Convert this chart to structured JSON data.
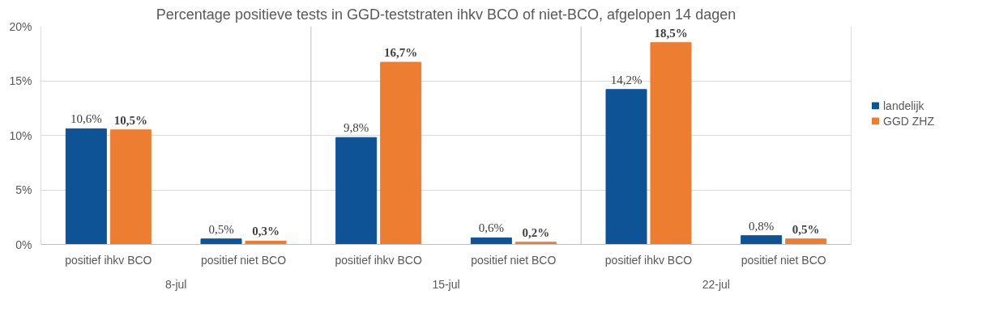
{
  "chart_data": {
    "type": "bar",
    "title": "Percentage positieve tests in GGD-teststraten ihkv BCO of niet-BCO, afgelopen 14 dagen",
    "categories": [
      "positief ihkv BCO",
      "positief niet BCO",
      "positief ihkv BCO",
      "positief niet BCO",
      "positief ihkv BCO",
      "positief niet BCO"
    ],
    "annotations": [
      "8-jul",
      "15-jul",
      "22-jul"
    ],
    "series": [
      {
        "name": "landelijk",
        "color": "#0e5396",
        "values": [
          10.6,
          0.5,
          9.8,
          0.6,
          14.2,
          0.8
        ],
        "value_labels": [
          "10,6%",
          "0,5%",
          "9,8%",
          "0,6%",
          "14,2%",
          "0,8%"
        ]
      },
      {
        "name": "GGD ZHZ",
        "color": "#ed7d31",
        "values": [
          10.5,
          0.3,
          16.7,
          0.2,
          18.5,
          0.5
        ],
        "value_labels": [
          "10,5%",
          "0,3%",
          "16,7%",
          "0,2%",
          "18,5%",
          "0,5%"
        ]
      }
    ],
    "ylim": [
      0,
      20
    ],
    "yticks": [
      {
        "value": 0,
        "label": "0%"
      },
      {
        "value": 5,
        "label": "5%"
      },
      {
        "value": 10,
        "label": "10%"
      },
      {
        "value": 15,
        "label": "15%"
      },
      {
        "value": 20,
        "label": "20%"
      }
    ],
    "grid": "y",
    "legend": "right"
  }
}
